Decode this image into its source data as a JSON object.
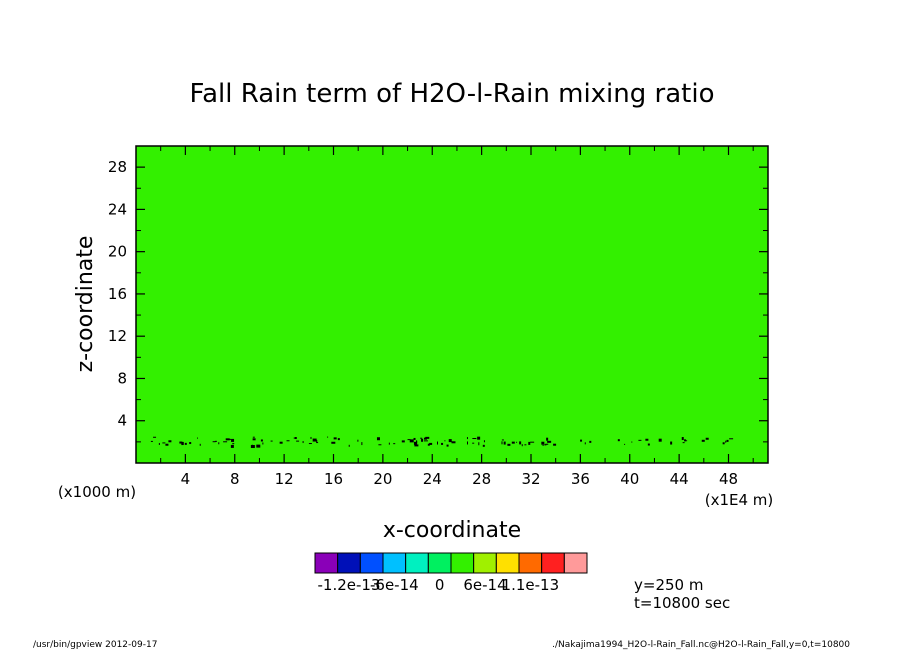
{
  "chart_data": {
    "type": "heatmap",
    "title": "Fall Rain term of H2O-l-Rain mixing ratio",
    "xlabel": "x-coordinate",
    "ylabel": "z-coordinate",
    "x_unit_left": "(x1000 m)",
    "x_unit_right": "(x1E4 m)",
    "xlim": [
      0,
      51.2
    ],
    "ylim": [
      0,
      30
    ],
    "x_ticks": [
      4,
      8,
      12,
      16,
      20,
      24,
      28,
      32,
      36,
      40,
      44,
      48
    ],
    "x_ticks_minor": [
      2,
      6,
      10,
      14,
      18,
      22,
      26,
      30,
      34,
      38,
      42,
      46,
      50
    ],
    "y_ticks": [
      4,
      8,
      12,
      16,
      20,
      24,
      28
    ],
    "y_ticks_minor": [
      2,
      6,
      10,
      14,
      18,
      22,
      26,
      30
    ],
    "field_color": "#33f000",
    "note": "Entire field falls in the 0 to 3e-14 bin; faint noise speckles near z=2",
    "colorbar": {
      "colors": [
        "#8a00b8",
        "#0010b8",
        "#0050ff",
        "#00c0ff",
        "#00f0c0",
        "#00f060",
        "#33f000",
        "#a0f000",
        "#ffe000",
        "#ff6a00",
        "#ff2020",
        "#ff9a9a"
      ],
      "tick_labels": [
        {
          "label": "-1.2e-13",
          "boundary": 1
        },
        {
          "label": "-6e-14",
          "boundary": 3
        },
        {
          "label": "0",
          "boundary": 5
        },
        {
          "label": "6e-14",
          "boundary": 7
        },
        {
          "label": "1.1e-13",
          "boundary": 9
        }
      ]
    },
    "annotations": {
      "y_position": "y=250 m",
      "time": "t=10800 sec"
    }
  },
  "footer": {
    "left": "/usr/bin/gpview   2012-09-17",
    "right": "./Nakajima1994_H2O-l-Rain_Fall.nc@H2O-l-Rain_Fall,y=0,t=10800"
  }
}
